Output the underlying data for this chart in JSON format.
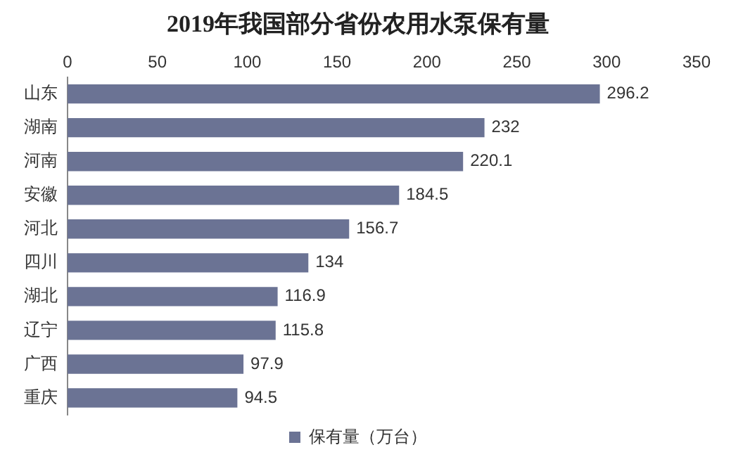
{
  "chart_data": {
    "type": "bar",
    "orientation": "horizontal",
    "title": "2019年我国部分省份农用水泵保有量",
    "categories": [
      "山东",
      "湖南",
      "河南",
      "安徽",
      "河北",
      "四川",
      "湖北",
      "辽宁",
      "广西",
      "重庆"
    ],
    "series": [
      {
        "name": "保有量（万台）",
        "color": "#6b7394",
        "values": [
          296.2,
          232,
          220.1,
          184.5,
          156.7,
          134,
          116.9,
          115.8,
          97.9,
          94.5
        ]
      }
    ],
    "xlim": [
      0,
      350
    ],
    "xticks": [
      0,
      50,
      100,
      150,
      200,
      250,
      300,
      350
    ],
    "grid": false,
    "legend": "bottom",
    "data_labels": true
  }
}
